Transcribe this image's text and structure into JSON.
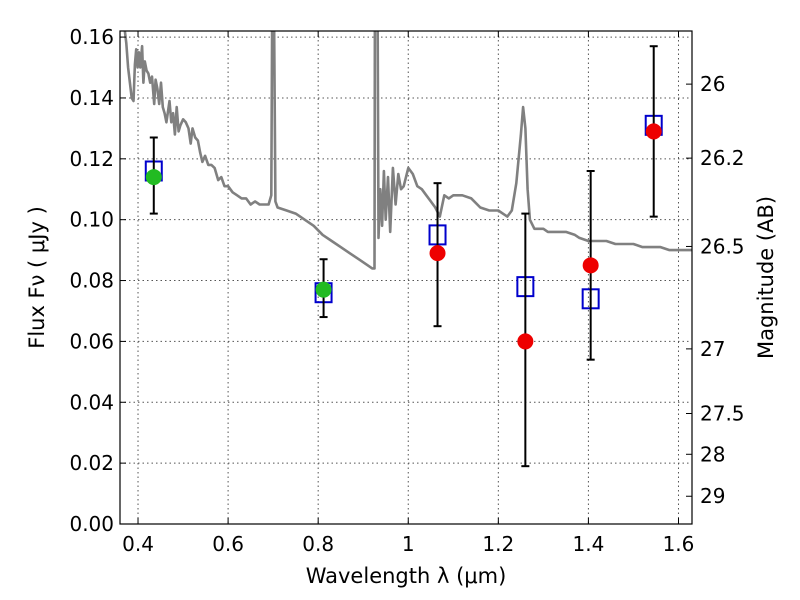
{
  "chart_data": {
    "type": "scatter",
    "title": "",
    "xlabel": "Wavelength  λ (μm)",
    "ylabel": "Flux  Fν  ( μJy )",
    "ylabel_right": "Magnitude (AB)",
    "xlim": [
      0.36,
      1.63
    ],
    "ylim": [
      0,
      0.162
    ],
    "grid": true,
    "x_ticks": [
      {
        "value": 0.4,
        "label": "0.4"
      },
      {
        "value": 0.6,
        "label": "0.6"
      },
      {
        "value": 0.8,
        "label": "0.8"
      },
      {
        "value": 1.0,
        "label": "1"
      },
      {
        "value": 1.2,
        "label": "1.2"
      },
      {
        "value": 1.4,
        "label": "1.4"
      },
      {
        "value": 1.6,
        "label": "1.6"
      }
    ],
    "y_ticks": [
      {
        "value": 0.0,
        "label": "0.00"
      },
      {
        "value": 0.02,
        "label": "0.02"
      },
      {
        "value": 0.04,
        "label": "0.04"
      },
      {
        "value": 0.06,
        "label": "0.06"
      },
      {
        "value": 0.08,
        "label": "0.08"
      },
      {
        "value": 0.1,
        "label": "0.10"
      },
      {
        "value": 0.12,
        "label": "0.12"
      },
      {
        "value": 0.14,
        "label": "0.14"
      },
      {
        "value": 0.16,
        "label": "0.16"
      }
    ],
    "right_ticks": [
      {
        "mag": 26,
        "label": "26"
      },
      {
        "mag": 26.2,
        "label": "26.2"
      },
      {
        "mag": 26.5,
        "label": "26.5"
      },
      {
        "mag": 27,
        "label": "27"
      },
      {
        "mag": 27.5,
        "label": "27.5"
      },
      {
        "mag": 28,
        "label": "28"
      },
      {
        "mag": 29,
        "label": "29"
      }
    ],
    "series": [
      {
        "kind": "line",
        "color": "#808080",
        "points": [
          [
            0.37,
            0.163
          ],
          [
            0.374,
            0.158
          ],
          [
            0.378,
            0.15
          ],
          [
            0.382,
            0.145
          ],
          [
            0.386,
            0.14
          ],
          [
            0.39,
            0.139
          ],
          [
            0.393,
            0.151
          ],
          [
            0.396,
            0.156
          ],
          [
            0.399,
            0.15
          ],
          [
            0.402,
            0.155
          ],
          [
            0.405,
            0.15
          ],
          [
            0.409,
            0.157
          ],
          [
            0.412,
            0.145
          ],
          [
            0.415,
            0.152
          ],
          [
            0.419,
            0.149
          ],
          [
            0.423,
            0.148
          ],
          [
            0.427,
            0.145
          ],
          [
            0.431,
            0.147
          ],
          [
            0.436,
            0.138
          ],
          [
            0.439,
            0.146
          ],
          [
            0.443,
            0.143
          ],
          [
            0.447,
            0.138
          ],
          [
            0.451,
            0.145
          ],
          [
            0.455,
            0.137
          ],
          [
            0.459,
            0.135
          ],
          [
            0.463,
            0.132
          ],
          [
            0.467,
            0.136
          ],
          [
            0.47,
            0.139
          ],
          [
            0.474,
            0.132
          ],
          [
            0.478,
            0.135
          ],
          [
            0.482,
            0.128
          ],
          [
            0.486,
            0.137
          ],
          [
            0.49,
            0.129
          ],
          [
            0.494,
            0.131
          ],
          [
            0.5,
            0.133
          ],
          [
            0.506,
            0.132
          ],
          [
            0.512,
            0.13
          ],
          [
            0.517,
            0.125
          ],
          [
            0.521,
            0.13
          ],
          [
            0.527,
            0.127
          ],
          [
            0.533,
            0.126
          ],
          [
            0.538,
            0.122
          ],
          [
            0.543,
            0.119
          ],
          [
            0.549,
            0.121
          ],
          [
            0.556,
            0.118
          ],
          [
            0.563,
            0.118
          ],
          [
            0.57,
            0.117
          ],
          [
            0.578,
            0.113
          ],
          [
            0.585,
            0.114
          ],
          [
            0.592,
            0.111
          ],
          [
            0.6,
            0.111
          ],
          [
            0.61,
            0.109
          ],
          [
            0.62,
            0.108
          ],
          [
            0.63,
            0.107
          ],
          [
            0.64,
            0.107
          ],
          [
            0.65,
            0.105
          ],
          [
            0.66,
            0.106
          ],
          [
            0.67,
            0.105
          ],
          [
            0.68,
            0.105
          ],
          [
            0.69,
            0.105
          ],
          [
            0.696,
            0.108
          ],
          [
            0.698,
            0.17
          ],
          [
            0.702,
            0.17
          ],
          [
            0.705,
            0.106
          ],
          [
            0.71,
            0.104
          ],
          [
            0.73,
            0.103
          ],
          [
            0.75,
            0.102
          ],
          [
            0.77,
            0.1
          ],
          [
            0.79,
            0.098
          ],
          [
            0.81,
            0.095
          ],
          [
            0.83,
            0.093
          ],
          [
            0.85,
            0.091
          ],
          [
            0.87,
            0.089
          ],
          [
            0.89,
            0.087
          ],
          [
            0.91,
            0.085
          ],
          [
            0.92,
            0.084
          ],
          [
            0.925,
            0.084
          ],
          [
            0.926,
            0.17
          ],
          [
            0.93,
            0.17
          ],
          [
            0.932,
            0.17
          ],
          [
            0.934,
            0.094
          ],
          [
            0.938,
            0.11
          ],
          [
            0.942,
            0.098
          ],
          [
            0.946,
            0.116
          ],
          [
            0.95,
            0.1
          ],
          [
            0.955,
            0.114
          ],
          [
            0.96,
            0.096
          ],
          [
            0.966,
            0.117
          ],
          [
            0.972,
            0.105
          ],
          [
            0.978,
            0.115
          ],
          [
            0.984,
            0.11
          ],
          [
            0.99,
            0.111
          ],
          [
            1.0,
            0.117
          ],
          [
            1.01,
            0.115
          ],
          [
            1.02,
            0.111
          ],
          [
            1.03,
            0.11
          ],
          [
            1.04,
            0.108
          ],
          [
            1.05,
            0.106
          ],
          [
            1.06,
            0.104
          ],
          [
            1.07,
            0.101
          ],
          [
            1.08,
            0.108
          ],
          [
            1.09,
            0.107
          ],
          [
            1.1,
            0.108
          ],
          [
            1.12,
            0.108
          ],
          [
            1.14,
            0.107
          ],
          [
            1.16,
            0.104
          ],
          [
            1.18,
            0.103
          ],
          [
            1.2,
            0.103
          ],
          [
            1.21,
            0.102
          ],
          [
            1.22,
            0.101
          ],
          [
            1.23,
            0.103
          ],
          [
            1.24,
            0.112
          ],
          [
            1.25,
            0.128
          ],
          [
            1.255,
            0.137
          ],
          [
            1.26,
            0.13
          ],
          [
            1.265,
            0.11
          ],
          [
            1.27,
            0.1
          ],
          [
            1.28,
            0.097
          ],
          [
            1.29,
            0.097
          ],
          [
            1.3,
            0.097
          ],
          [
            1.31,
            0.096
          ],
          [
            1.33,
            0.096
          ],
          [
            1.35,
            0.096
          ],
          [
            1.37,
            0.095
          ],
          [
            1.38,
            0.094
          ],
          [
            1.4,
            0.093
          ],
          [
            1.42,
            0.093
          ],
          [
            1.44,
            0.093
          ],
          [
            1.46,
            0.092
          ],
          [
            1.48,
            0.092
          ],
          [
            1.5,
            0.092
          ],
          [
            1.52,
            0.091
          ],
          [
            1.54,
            0.091
          ],
          [
            1.56,
            0.091
          ],
          [
            1.58,
            0.09
          ],
          [
            1.6,
            0.09
          ],
          [
            1.63,
            0.09
          ]
        ]
      },
      {
        "kind": "open-square",
        "color": "#0000cc",
        "points": [
          {
            "x": 0.435,
            "y": 0.116
          },
          {
            "x": 0.812,
            "y": 0.076
          },
          {
            "x": 1.065,
            "y": 0.095
          },
          {
            "x": 1.26,
            "y": 0.078
          },
          {
            "x": 1.405,
            "y": 0.074
          },
          {
            "x": 1.545,
            "y": 0.131
          }
        ]
      },
      {
        "kind": "filled-circle",
        "color": "#22bb22",
        "points": [
          {
            "x": 0.435,
            "y": 0.114,
            "yerr_low": 0.102,
            "yerr_high": 0.127
          },
          {
            "x": 0.812,
            "y": 0.077,
            "yerr_low": 0.068,
            "yerr_high": 0.087
          }
        ]
      },
      {
        "kind": "filled-circle",
        "color": "#ee0000",
        "points": [
          {
            "x": 1.065,
            "y": 0.089,
            "yerr_low": 0.065,
            "yerr_high": 0.112
          },
          {
            "x": 1.26,
            "y": 0.06,
            "yerr_low": 0.019,
            "yerr_high": 0.102
          },
          {
            "x": 1.405,
            "y": 0.085,
            "yerr_low": 0.054,
            "yerr_high": 0.116
          },
          {
            "x": 1.545,
            "y": 0.129,
            "yerr_low": 0.101,
            "yerr_high": 0.157
          }
        ]
      }
    ]
  }
}
